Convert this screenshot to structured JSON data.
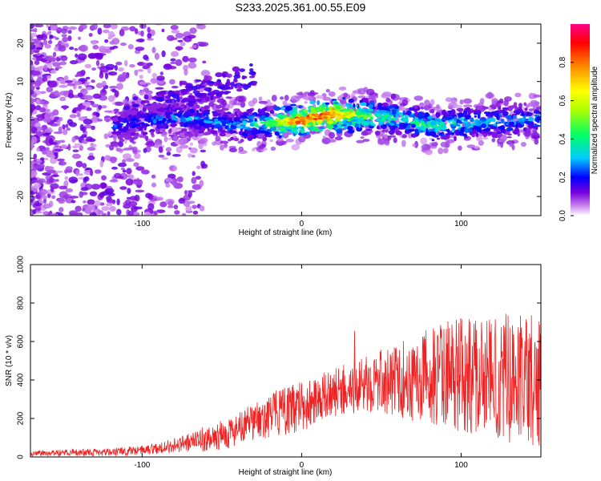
{
  "title": "S233.2025.361.00.55.E09",
  "chart_data": [
    {
      "type": "heatmap",
      "title": "S233.2025.361.00.55.E09",
      "xlabel": "Height of straight line (km)",
      "ylabel": "Frequency (Hz)",
      "xlim": [
        -170,
        150
      ],
      "ylim": [
        -25,
        25
      ],
      "xticks": [
        -100,
        0,
        100
      ],
      "yticks": [
        -20,
        -10,
        0,
        10,
        20
      ],
      "colorbar": {
        "label": "Normalized spectral amplitude",
        "range": [
          0.0,
          1.0
        ],
        "ticks": [
          "0.0",
          "0.2",
          "0.4",
          "0.6",
          "0.8"
        ],
        "tick_values": [
          0.0,
          0.2,
          0.4,
          0.6,
          0.8
        ],
        "colors": [
          "#ffffff",
          "#cc88ee",
          "#7700dd",
          "#0000ff",
          "#00ccff",
          "#00ff66",
          "#aaff00",
          "#ffff00",
          "#ff8800",
          "#ff0000",
          "#ff0088"
        ]
      },
      "ridge": {
        "description_points_km": [
          -115,
          -100,
          -80,
          -60,
          -40,
          -20,
          0,
          20,
          40,
          60,
          80,
          100,
          120,
          150
        ],
        "frequency_hz": [
          -1.5,
          -0.5,
          0.5,
          0.0,
          -1.5,
          -1.0,
          0.0,
          1.5,
          1.0,
          0.5,
          -1.5,
          -1.0,
          -0.5,
          0.0
        ],
        "amplitude": [
          0.25,
          0.25,
          0.3,
          0.3,
          0.3,
          0.5,
          0.95,
          0.9,
          0.55,
          0.4,
          0.45,
          0.4,
          0.35,
          0.3
        ]
      }
    },
    {
      "type": "line",
      "xlabel": "Height of straight line (km)",
      "ylabel": "SNR (10 * v/v)",
      "xlim": [
        -170,
        150
      ],
      "ylim": [
        0,
        1000
      ],
      "xticks": [
        -100,
        0,
        100
      ],
      "yticks": [
        0,
        200,
        400,
        600,
        800,
        1000
      ],
      "color": "#ee2222",
      "envelope": {
        "x_km": [
          -170,
          -120,
          -100,
          -80,
          -60,
          -40,
          -20,
          0,
          20,
          40,
          60,
          80,
          100,
          120,
          150
        ],
        "mean_snr": [
          20,
          25,
          35,
          60,
          90,
          140,
          220,
          260,
          330,
          380,
          400,
          420,
          430,
          420,
          400
        ],
        "spread": [
          15,
          20,
          25,
          40,
          60,
          90,
          120,
          130,
          130,
          140,
          200,
          250,
          300,
          330,
          350
        ]
      }
    }
  ]
}
